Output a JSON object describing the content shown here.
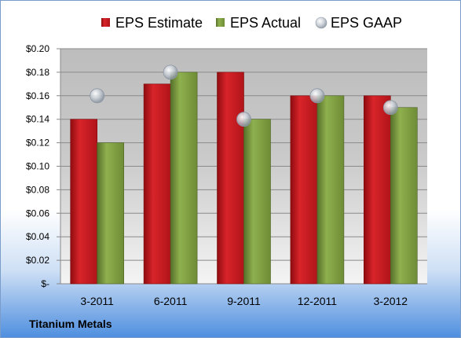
{
  "company": "Titanium Metals",
  "colors": {
    "estimate": "#c0161c",
    "actual": "#7a9a3c",
    "gaap": "#b9c0c8",
    "company_label": "#0d2c6c"
  },
  "chart_data": {
    "type": "bar",
    "categories": [
      "3-2011",
      "6-2011",
      "9-2011",
      "12-2011",
      "3-2012"
    ],
    "series": [
      {
        "name": "EPS Estimate",
        "kind": "bar",
        "values": [
          0.14,
          0.17,
          0.18,
          0.16,
          0.16
        ]
      },
      {
        "name": "EPS Actual",
        "kind": "bar",
        "values": [
          0.12,
          0.18,
          0.14,
          0.16,
          0.15
        ]
      },
      {
        "name": "EPS GAAP",
        "kind": "marker",
        "values": [
          0.16,
          0.18,
          0.14,
          0.16,
          0.15
        ]
      }
    ],
    "ylim": [
      0,
      0.2
    ],
    "yticks": [
      0,
      0.02,
      0.04,
      0.06,
      0.08,
      0.1,
      0.12,
      0.14,
      0.16,
      0.18,
      0.2
    ],
    "ytick_labels": [
      "$-",
      "$0.02",
      "$0.04",
      "$0.06",
      "$0.08",
      "$0.10",
      "$0.12",
      "$0.14",
      "$0.16",
      "$0.18",
      "$0.20"
    ],
    "grid": true,
    "legend": "top"
  }
}
